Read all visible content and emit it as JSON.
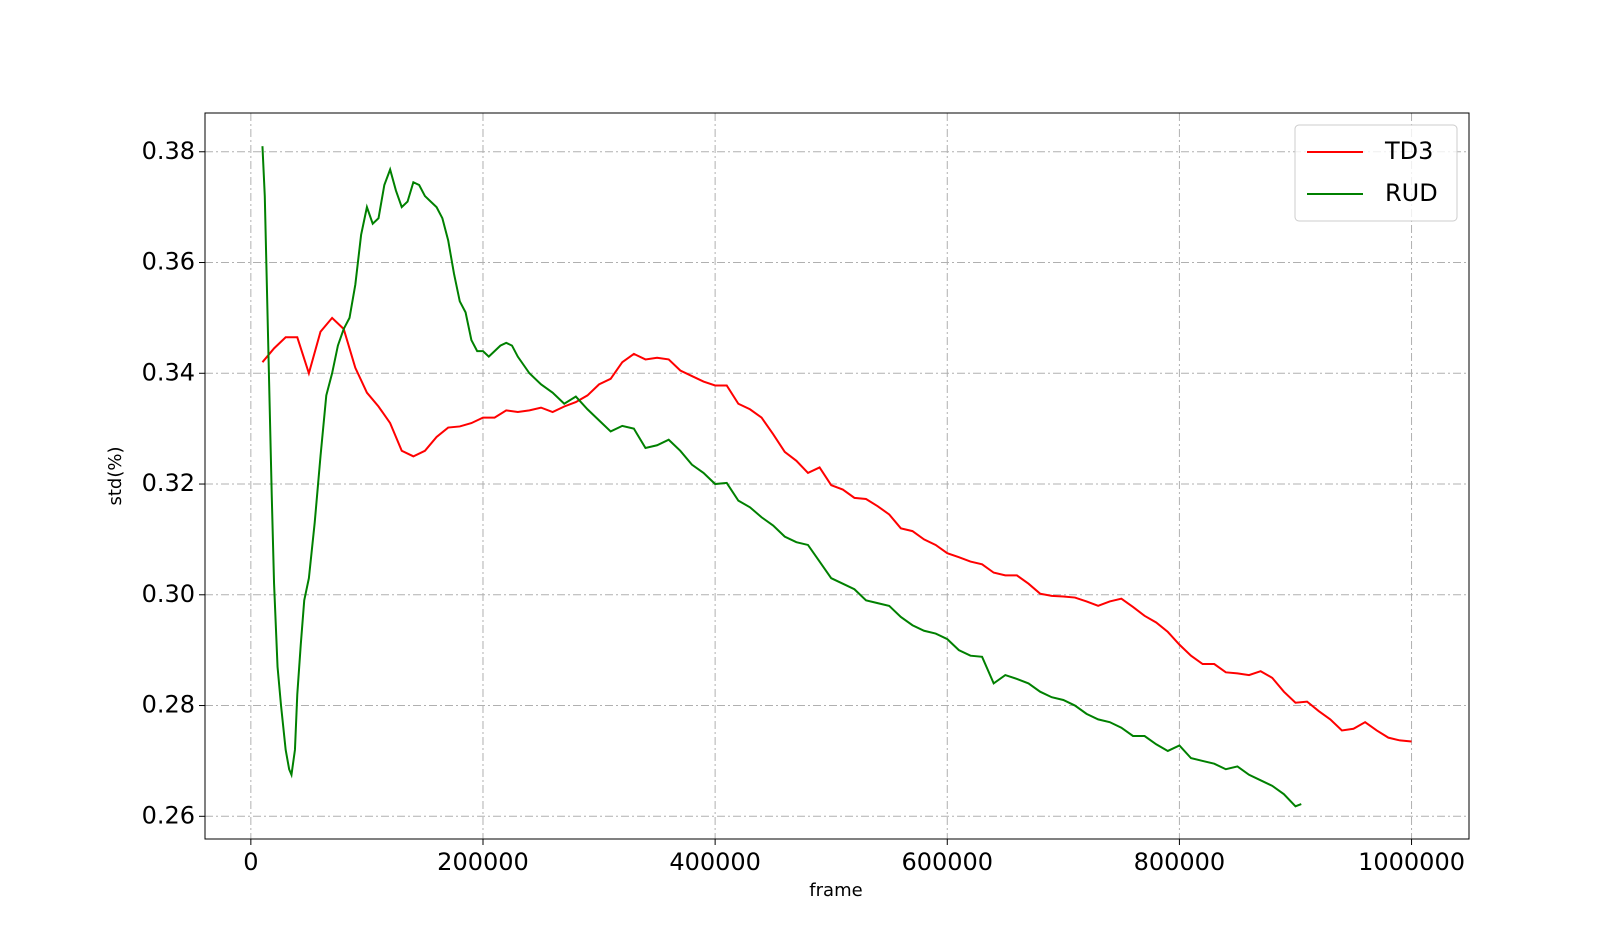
{
  "chart_data": {
    "type": "line",
    "xlabel": "frame",
    "ylabel": "std(%)",
    "xlim": [
      -39500,
      1049500
    ],
    "ylim": [
      0.2559,
      0.387
    ],
    "xticks": [
      0,
      200000,
      400000,
      600000,
      800000,
      1000000
    ],
    "yticks": [
      0.26,
      0.28,
      {
        "value": 0.3,
        "label": "0.30"
      },
      0.32,
      0.34,
      0.36,
      0.38
    ],
    "grid": true,
    "legend": "upper right",
    "series": [
      {
        "name": "TD3",
        "color": "#ff0000",
        "x": [
          10000,
          20000,
          30000,
          40000,
          50000,
          60000,
          70000,
          80000,
          90000,
          100000,
          110000,
          120000,
          130000,
          140000,
          150000,
          160000,
          170000,
          180000,
          190000,
          200000,
          210000,
          220000,
          230000,
          240000,
          250000,
          260000,
          270000,
          280000,
          290000,
          300000,
          310000,
          320000,
          330000,
          340000,
          350000,
          360000,
          370000,
          380000,
          390000,
          400000,
          410000,
          420000,
          430000,
          440000,
          450000,
          460000,
          470000,
          480000,
          490000,
          500000,
          510000,
          520000,
          530000,
          540000,
          550000,
          560000,
          570000,
          580000,
          590000,
          600000,
          610000,
          620000,
          630000,
          640000,
          650000,
          660000,
          670000,
          680000,
          690000,
          700000,
          710000,
          720000,
          730000,
          740000,
          750000,
          760000,
          770000,
          780000,
          790000,
          800000,
          810000,
          820000,
          830000,
          840000,
          850000,
          860000,
          870000,
          880000,
          890000,
          900000,
          910000,
          920000,
          930000,
          940000,
          950000,
          960000,
          970000,
          980000,
          990000,
          1000000
        ],
        "values": [
          0.342,
          0.3445,
          0.3465,
          0.3465,
          0.34,
          0.3475,
          0.35,
          0.348,
          0.341,
          0.3365,
          0.334,
          0.331,
          0.326,
          0.325,
          0.326,
          0.3285,
          0.3302,
          0.3304,
          0.331,
          0.332,
          0.332,
          0.3333,
          0.333,
          0.3333,
          0.3338,
          0.333,
          0.334,
          0.3348,
          0.336,
          0.338,
          0.339,
          0.342,
          0.3435,
          0.3425,
          0.3428,
          0.3425,
          0.3405,
          0.3395,
          0.3385,
          0.3378,
          0.3378,
          0.3345,
          0.3335,
          0.332,
          0.329,
          0.3258,
          0.3242,
          0.322,
          0.323,
          0.3198,
          0.319,
          0.3175,
          0.3173,
          0.316,
          0.3145,
          0.312,
          0.3115,
          0.31,
          0.309,
          0.3075,
          0.3068,
          0.306,
          0.3055,
          0.304,
          0.3035,
          0.3035,
          0.302,
          0.3002,
          0.2998,
          0.2997,
          0.2995,
          0.2988,
          0.298,
          0.2988,
          0.2993,
          0.2978,
          0.2962,
          0.295,
          0.2933,
          0.291,
          0.289,
          0.2875,
          0.2875,
          0.286,
          0.2858,
          0.2855,
          0.2862,
          0.285,
          0.2825,
          0.2805,
          0.2807,
          0.279,
          0.2775,
          0.2755,
          0.2758,
          0.277,
          0.2755,
          0.2742,
          0.2737,
          0.2735
        ]
      },
      {
        "name": "RUD",
        "color": "#008000",
        "x": [
          10000,
          12000,
          15000,
          18000,
          20000,
          23000,
          26000,
          30000,
          33000,
          35000,
          38000,
          40000,
          43000,
          46000,
          50000,
          55000,
          60000,
          65000,
          70000,
          75000,
          80000,
          85000,
          90000,
          95000,
          100000,
          105000,
          110000,
          115000,
          120000,
          125000,
          130000,
          135000,
          140000,
          145000,
          150000,
          155000,
          160000,
          165000,
          170000,
          175000,
          180000,
          185000,
          190000,
          195000,
          200000,
          205000,
          210000,
          215000,
          220000,
          225000,
          230000,
          240000,
          250000,
          260000,
          270000,
          280000,
          290000,
          300000,
          310000,
          320000,
          330000,
          340000,
          350000,
          360000,
          370000,
          380000,
          390000,
          400000,
          410000,
          420000,
          430000,
          440000,
          450000,
          460000,
          470000,
          480000,
          490000,
          500000,
          510000,
          520000,
          530000,
          540000,
          550000,
          560000,
          570000,
          580000,
          590000,
          600000,
          610000,
          620000,
          630000,
          640000,
          650000,
          660000,
          670000,
          680000,
          690000,
          700000,
          710000,
          720000,
          730000,
          740000,
          750000,
          760000,
          770000,
          780000,
          790000,
          800000,
          810000,
          820000,
          830000,
          840000,
          850000,
          860000,
          870000,
          880000,
          890000,
          900000,
          905000
        ],
        "values": [
          0.381,
          0.372,
          0.345,
          0.318,
          0.302,
          0.287,
          0.28,
          0.272,
          0.2685,
          0.2675,
          0.272,
          0.282,
          0.291,
          0.299,
          0.303,
          0.313,
          0.325,
          0.336,
          0.34,
          0.345,
          0.348,
          0.35,
          0.356,
          0.365,
          0.37,
          0.367,
          0.368,
          0.374,
          0.3768,
          0.373,
          0.37,
          0.371,
          0.3745,
          0.374,
          0.372,
          0.371,
          0.37,
          0.368,
          0.364,
          0.358,
          0.353,
          0.351,
          0.346,
          0.344,
          0.344,
          0.343,
          0.344,
          0.345,
          0.3455,
          0.345,
          0.343,
          0.34,
          0.338,
          0.3365,
          0.3345,
          0.3358,
          0.3335,
          0.3315,
          0.3295,
          0.3305,
          0.33,
          0.3265,
          0.327,
          0.328,
          0.326,
          0.3235,
          0.322,
          0.32,
          0.3202,
          0.317,
          0.3158,
          0.314,
          0.3125,
          0.3105,
          0.3095,
          0.309,
          0.306,
          0.303,
          0.302,
          0.301,
          0.299,
          0.2985,
          0.298,
          0.296,
          0.2945,
          0.2935,
          0.293,
          0.292,
          0.29,
          0.289,
          0.2888,
          0.284,
          0.2855,
          0.2848,
          0.284,
          0.2825,
          0.2815,
          0.281,
          0.28,
          0.2785,
          0.2775,
          0.277,
          0.276,
          0.2745,
          0.2745,
          0.273,
          0.2718,
          0.2728,
          0.2705,
          0.27,
          0.2695,
          0.2685,
          0.269,
          0.2675,
          0.2665,
          0.2655,
          0.264,
          0.2618,
          0.2622
        ]
      }
    ]
  }
}
